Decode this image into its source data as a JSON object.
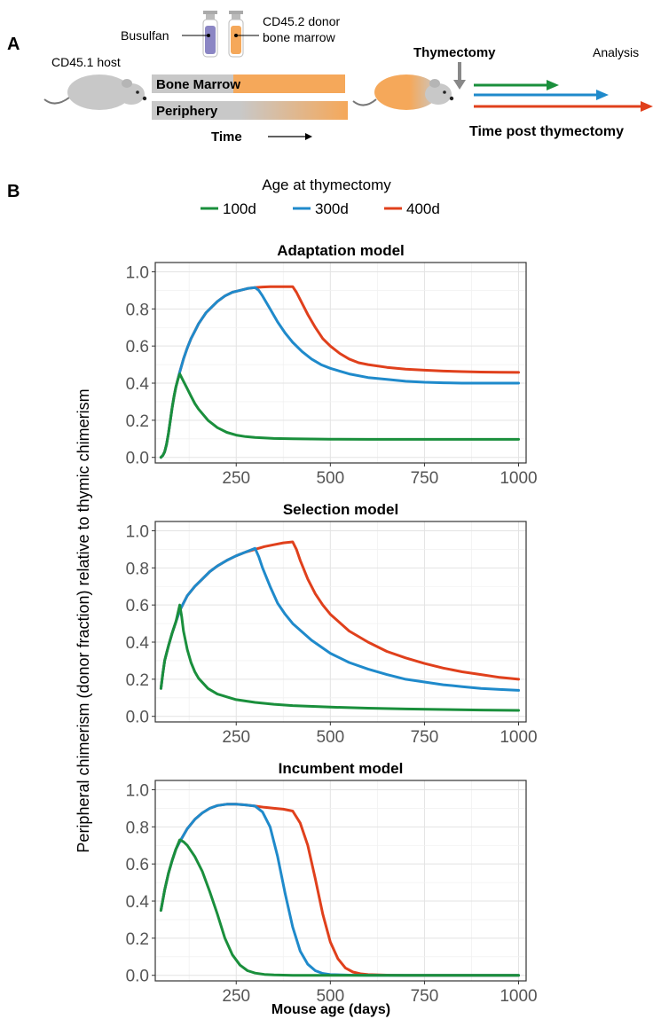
{
  "panel_a": {
    "letter": "A",
    "host_label": "CD45.1 host",
    "busulfan_label": "Busulfan",
    "donor_label_line1": "CD45.2 donor",
    "donor_label_line2": "bone marrow",
    "bone_marrow_label": "Bone Marrow",
    "periphery_label": "Periphery",
    "time_label": "Time",
    "thymectomy_label": "Thymectomy",
    "analysis_label": "Analysis",
    "time_post_label": "Time post thymectomy",
    "colors": {
      "host": "#c8c8c8",
      "donor": "#f5a85a",
      "vial_purple": "#8b86c4",
      "green": "#1a8f3c",
      "blue": "#1f8acb",
      "red": "#e0401c"
    }
  },
  "panel_b": {
    "letter": "B",
    "legend": {
      "title": "Age at thymectomy",
      "items": [
        {
          "label": "100d",
          "color": "#1a8f3c"
        },
        {
          "label": "300d",
          "color": "#1f8acb"
        },
        {
          "label": "400d",
          "color": "#e0401c"
        }
      ]
    },
    "y_axis_label": "Peripheral chimerism (donor fraction) relative to thymic chimerism",
    "x_axis_label": "Mouse age (days)"
  },
  "chart_data": [
    {
      "type": "line",
      "title": "Adaptation model",
      "xlabel": "Mouse age (days)",
      "ylabel": "Peripheral chimerism (donor fraction) relative to thymic chimerism",
      "xlim": [
        35,
        1020
      ],
      "ylim": [
        -0.03,
        1.05
      ],
      "xticks": [
        250,
        500,
        750,
        1000
      ],
      "yticks": [
        0.0,
        0.2,
        0.4,
        0.6,
        0.8,
        1.0
      ],
      "ytick_labels": [
        "0.0",
        "0.2",
        "0.4",
        "0.6",
        "0.8",
        "1.0"
      ],
      "grid": true,
      "series": [
        {
          "name": "400d",
          "color": "#e0401c",
          "x": [
            50,
            55,
            60,
            65,
            70,
            75,
            80,
            85,
            90,
            95,
            100,
            110,
            120,
            130,
            140,
            150,
            160,
            170,
            180,
            190,
            200,
            220,
            240,
            260,
            280,
            300,
            320,
            340,
            360,
            380,
            400,
            410,
            420,
            440,
            460,
            480,
            500,
            525,
            550,
            575,
            600,
            650,
            700,
            750,
            800,
            850,
            900,
            950,
            1000
          ],
          "y": [
            0.0,
            0.01,
            0.03,
            0.07,
            0.13,
            0.2,
            0.27,
            0.33,
            0.38,
            0.42,
            0.46,
            0.53,
            0.59,
            0.64,
            0.68,
            0.72,
            0.75,
            0.78,
            0.8,
            0.82,
            0.84,
            0.87,
            0.89,
            0.9,
            0.91,
            0.915,
            0.918,
            0.92,
            0.92,
            0.92,
            0.92,
            0.89,
            0.85,
            0.77,
            0.7,
            0.64,
            0.6,
            0.56,
            0.53,
            0.51,
            0.5,
            0.485,
            0.475,
            0.47,
            0.465,
            0.462,
            0.46,
            0.459,
            0.458
          ]
        },
        {
          "name": "300d",
          "color": "#1f8acb",
          "x": [
            50,
            55,
            60,
            65,
            70,
            75,
            80,
            85,
            90,
            95,
            100,
            110,
            120,
            130,
            140,
            150,
            160,
            170,
            180,
            190,
            200,
            220,
            240,
            260,
            280,
            300,
            310,
            320,
            340,
            360,
            380,
            400,
            425,
            450,
            475,
            500,
            550,
            600,
            650,
            700,
            750,
            800,
            850,
            900,
            950,
            1000
          ],
          "y": [
            0.0,
            0.01,
            0.03,
            0.07,
            0.13,
            0.2,
            0.27,
            0.33,
            0.38,
            0.42,
            0.46,
            0.53,
            0.59,
            0.64,
            0.68,
            0.72,
            0.75,
            0.78,
            0.8,
            0.82,
            0.84,
            0.87,
            0.89,
            0.9,
            0.91,
            0.915,
            0.9,
            0.87,
            0.8,
            0.73,
            0.67,
            0.62,
            0.57,
            0.53,
            0.5,
            0.48,
            0.45,
            0.43,
            0.42,
            0.41,
            0.405,
            0.402,
            0.4,
            0.4,
            0.4,
            0.4
          ]
        },
        {
          "name": "100d",
          "color": "#1a8f3c",
          "x": [
            50,
            55,
            60,
            65,
            70,
            75,
            80,
            85,
            90,
            95,
            100,
            110,
            120,
            130,
            140,
            150,
            175,
            200,
            225,
            250,
            275,
            300,
            350,
            400,
            450,
            500,
            600,
            700,
            800,
            900,
            1000
          ],
          "y": [
            0.0,
            0.01,
            0.03,
            0.07,
            0.13,
            0.2,
            0.27,
            0.33,
            0.38,
            0.42,
            0.45,
            0.41,
            0.37,
            0.33,
            0.29,
            0.26,
            0.2,
            0.16,
            0.135,
            0.12,
            0.112,
            0.107,
            0.102,
            0.1,
            0.099,
            0.098,
            0.097,
            0.097,
            0.097,
            0.097,
            0.097
          ]
        }
      ]
    },
    {
      "type": "line",
      "title": "Selection model",
      "xlabel": "Mouse age (days)",
      "ylabel": "Peripheral chimerism (donor fraction) relative to thymic chimerism",
      "xlim": [
        35,
        1020
      ],
      "ylim": [
        -0.03,
        1.05
      ],
      "xticks": [
        250,
        500,
        750,
        1000
      ],
      "yticks": [
        0.0,
        0.2,
        0.4,
        0.6,
        0.8,
        1.0
      ],
      "ytick_labels": [
        "0.0",
        "0.2",
        "0.4",
        "0.6",
        "0.8",
        "1.0"
      ],
      "grid": true,
      "series": [
        {
          "name": "400d",
          "color": "#e0401c",
          "x": [
            50,
            55,
            60,
            65,
            70,
            80,
            90,
            100,
            110,
            120,
            140,
            160,
            180,
            200,
            225,
            250,
            275,
            300,
            325,
            350,
            375,
            400,
            410,
            420,
            440,
            460,
            480,
            500,
            550,
            600,
            650,
            700,
            750,
            800,
            850,
            900,
            950,
            1000
          ],
          "y": [
            0.15,
            0.23,
            0.3,
            0.34,
            0.38,
            0.45,
            0.51,
            0.57,
            0.61,
            0.65,
            0.7,
            0.74,
            0.78,
            0.81,
            0.84,
            0.865,
            0.885,
            0.9,
            0.915,
            0.925,
            0.935,
            0.94,
            0.9,
            0.84,
            0.74,
            0.66,
            0.6,
            0.55,
            0.46,
            0.4,
            0.35,
            0.315,
            0.285,
            0.26,
            0.24,
            0.225,
            0.21,
            0.2
          ]
        },
        {
          "name": "300d",
          "color": "#1f8acb",
          "x": [
            50,
            55,
            60,
            65,
            70,
            80,
            90,
            100,
            110,
            120,
            140,
            160,
            180,
            200,
            225,
            250,
            275,
            300,
            310,
            320,
            340,
            360,
            380,
            400,
            450,
            500,
            550,
            600,
            650,
            700,
            750,
            800,
            850,
            900,
            950,
            1000
          ],
          "y": [
            0.15,
            0.23,
            0.3,
            0.34,
            0.38,
            0.45,
            0.51,
            0.57,
            0.61,
            0.65,
            0.7,
            0.74,
            0.78,
            0.81,
            0.84,
            0.865,
            0.885,
            0.905,
            0.86,
            0.8,
            0.7,
            0.61,
            0.55,
            0.5,
            0.41,
            0.34,
            0.29,
            0.255,
            0.225,
            0.2,
            0.185,
            0.17,
            0.16,
            0.15,
            0.145,
            0.14
          ]
        },
        {
          "name": "100d",
          "color": "#1a8f3c",
          "x": [
            50,
            55,
            60,
            65,
            70,
            80,
            90,
            100,
            105,
            110,
            120,
            130,
            140,
            150,
            175,
            200,
            250,
            300,
            350,
            400,
            500,
            600,
            700,
            800,
            900,
            1000
          ],
          "y": [
            0.15,
            0.23,
            0.3,
            0.34,
            0.38,
            0.45,
            0.51,
            0.6,
            0.54,
            0.46,
            0.36,
            0.29,
            0.24,
            0.205,
            0.15,
            0.12,
            0.09,
            0.075,
            0.065,
            0.058,
            0.05,
            0.044,
            0.04,
            0.037,
            0.034,
            0.032
          ]
        }
      ]
    },
    {
      "type": "line",
      "title": "Incumbent model",
      "xlabel": "Mouse age (days)",
      "ylabel": "Peripheral chimerism (donor fraction) relative to thymic chimerism",
      "xlim": [
        35,
        1020
      ],
      "ylim": [
        -0.03,
        1.05
      ],
      "xticks": [
        250,
        500,
        750,
        1000
      ],
      "yticks": [
        0.0,
        0.2,
        0.4,
        0.6,
        0.8,
        1.0
      ],
      "ytick_labels": [
        "0.0",
        "0.2",
        "0.4",
        "0.6",
        "0.8",
        "1.0"
      ],
      "grid": true,
      "series": [
        {
          "name": "400d",
          "color": "#e0401c",
          "x": [
            50,
            60,
            70,
            80,
            90,
            100,
            120,
            140,
            160,
            180,
            200,
            225,
            250,
            275,
            300,
            325,
            350,
            375,
            400,
            420,
            440,
            460,
            480,
            500,
            520,
            540,
            560,
            580,
            600,
            650,
            700,
            800,
            900,
            1000
          ],
          "y": [
            0.35,
            0.46,
            0.55,
            0.62,
            0.68,
            0.72,
            0.79,
            0.84,
            0.875,
            0.9,
            0.915,
            0.922,
            0.922,
            0.918,
            0.912,
            0.905,
            0.9,
            0.895,
            0.885,
            0.82,
            0.7,
            0.52,
            0.33,
            0.18,
            0.09,
            0.04,
            0.018,
            0.008,
            0.004,
            0.001,
            0.0,
            0.0,
            0.0,
            0.0
          ]
        },
        {
          "name": "300d",
          "color": "#1f8acb",
          "x": [
            50,
            60,
            70,
            80,
            90,
            100,
            120,
            140,
            160,
            180,
            200,
            225,
            250,
            275,
            300,
            320,
            340,
            360,
            380,
            400,
            420,
            440,
            460,
            480,
            500,
            550,
            600,
            700,
            800,
            900,
            1000
          ],
          "y": [
            0.35,
            0.46,
            0.55,
            0.62,
            0.68,
            0.72,
            0.79,
            0.84,
            0.875,
            0.9,
            0.915,
            0.922,
            0.922,
            0.918,
            0.912,
            0.88,
            0.8,
            0.64,
            0.44,
            0.26,
            0.13,
            0.06,
            0.025,
            0.01,
            0.004,
            0.001,
            0.0,
            0.0,
            0.0,
            0.0,
            0.0
          ]
        },
        {
          "name": "100d",
          "color": "#1a8f3c",
          "x": [
            50,
            60,
            70,
            80,
            90,
            100,
            110,
            120,
            140,
            160,
            180,
            200,
            220,
            240,
            260,
            280,
            300,
            325,
            350,
            400,
            500,
            600,
            700,
            800,
            900,
            1000
          ],
          "y": [
            0.35,
            0.46,
            0.55,
            0.62,
            0.68,
            0.73,
            0.72,
            0.7,
            0.64,
            0.56,
            0.45,
            0.33,
            0.2,
            0.11,
            0.055,
            0.025,
            0.012,
            0.005,
            0.002,
            0.0,
            0.0,
            0.0,
            0.0,
            0.0,
            0.0,
            0.0
          ]
        }
      ]
    }
  ]
}
